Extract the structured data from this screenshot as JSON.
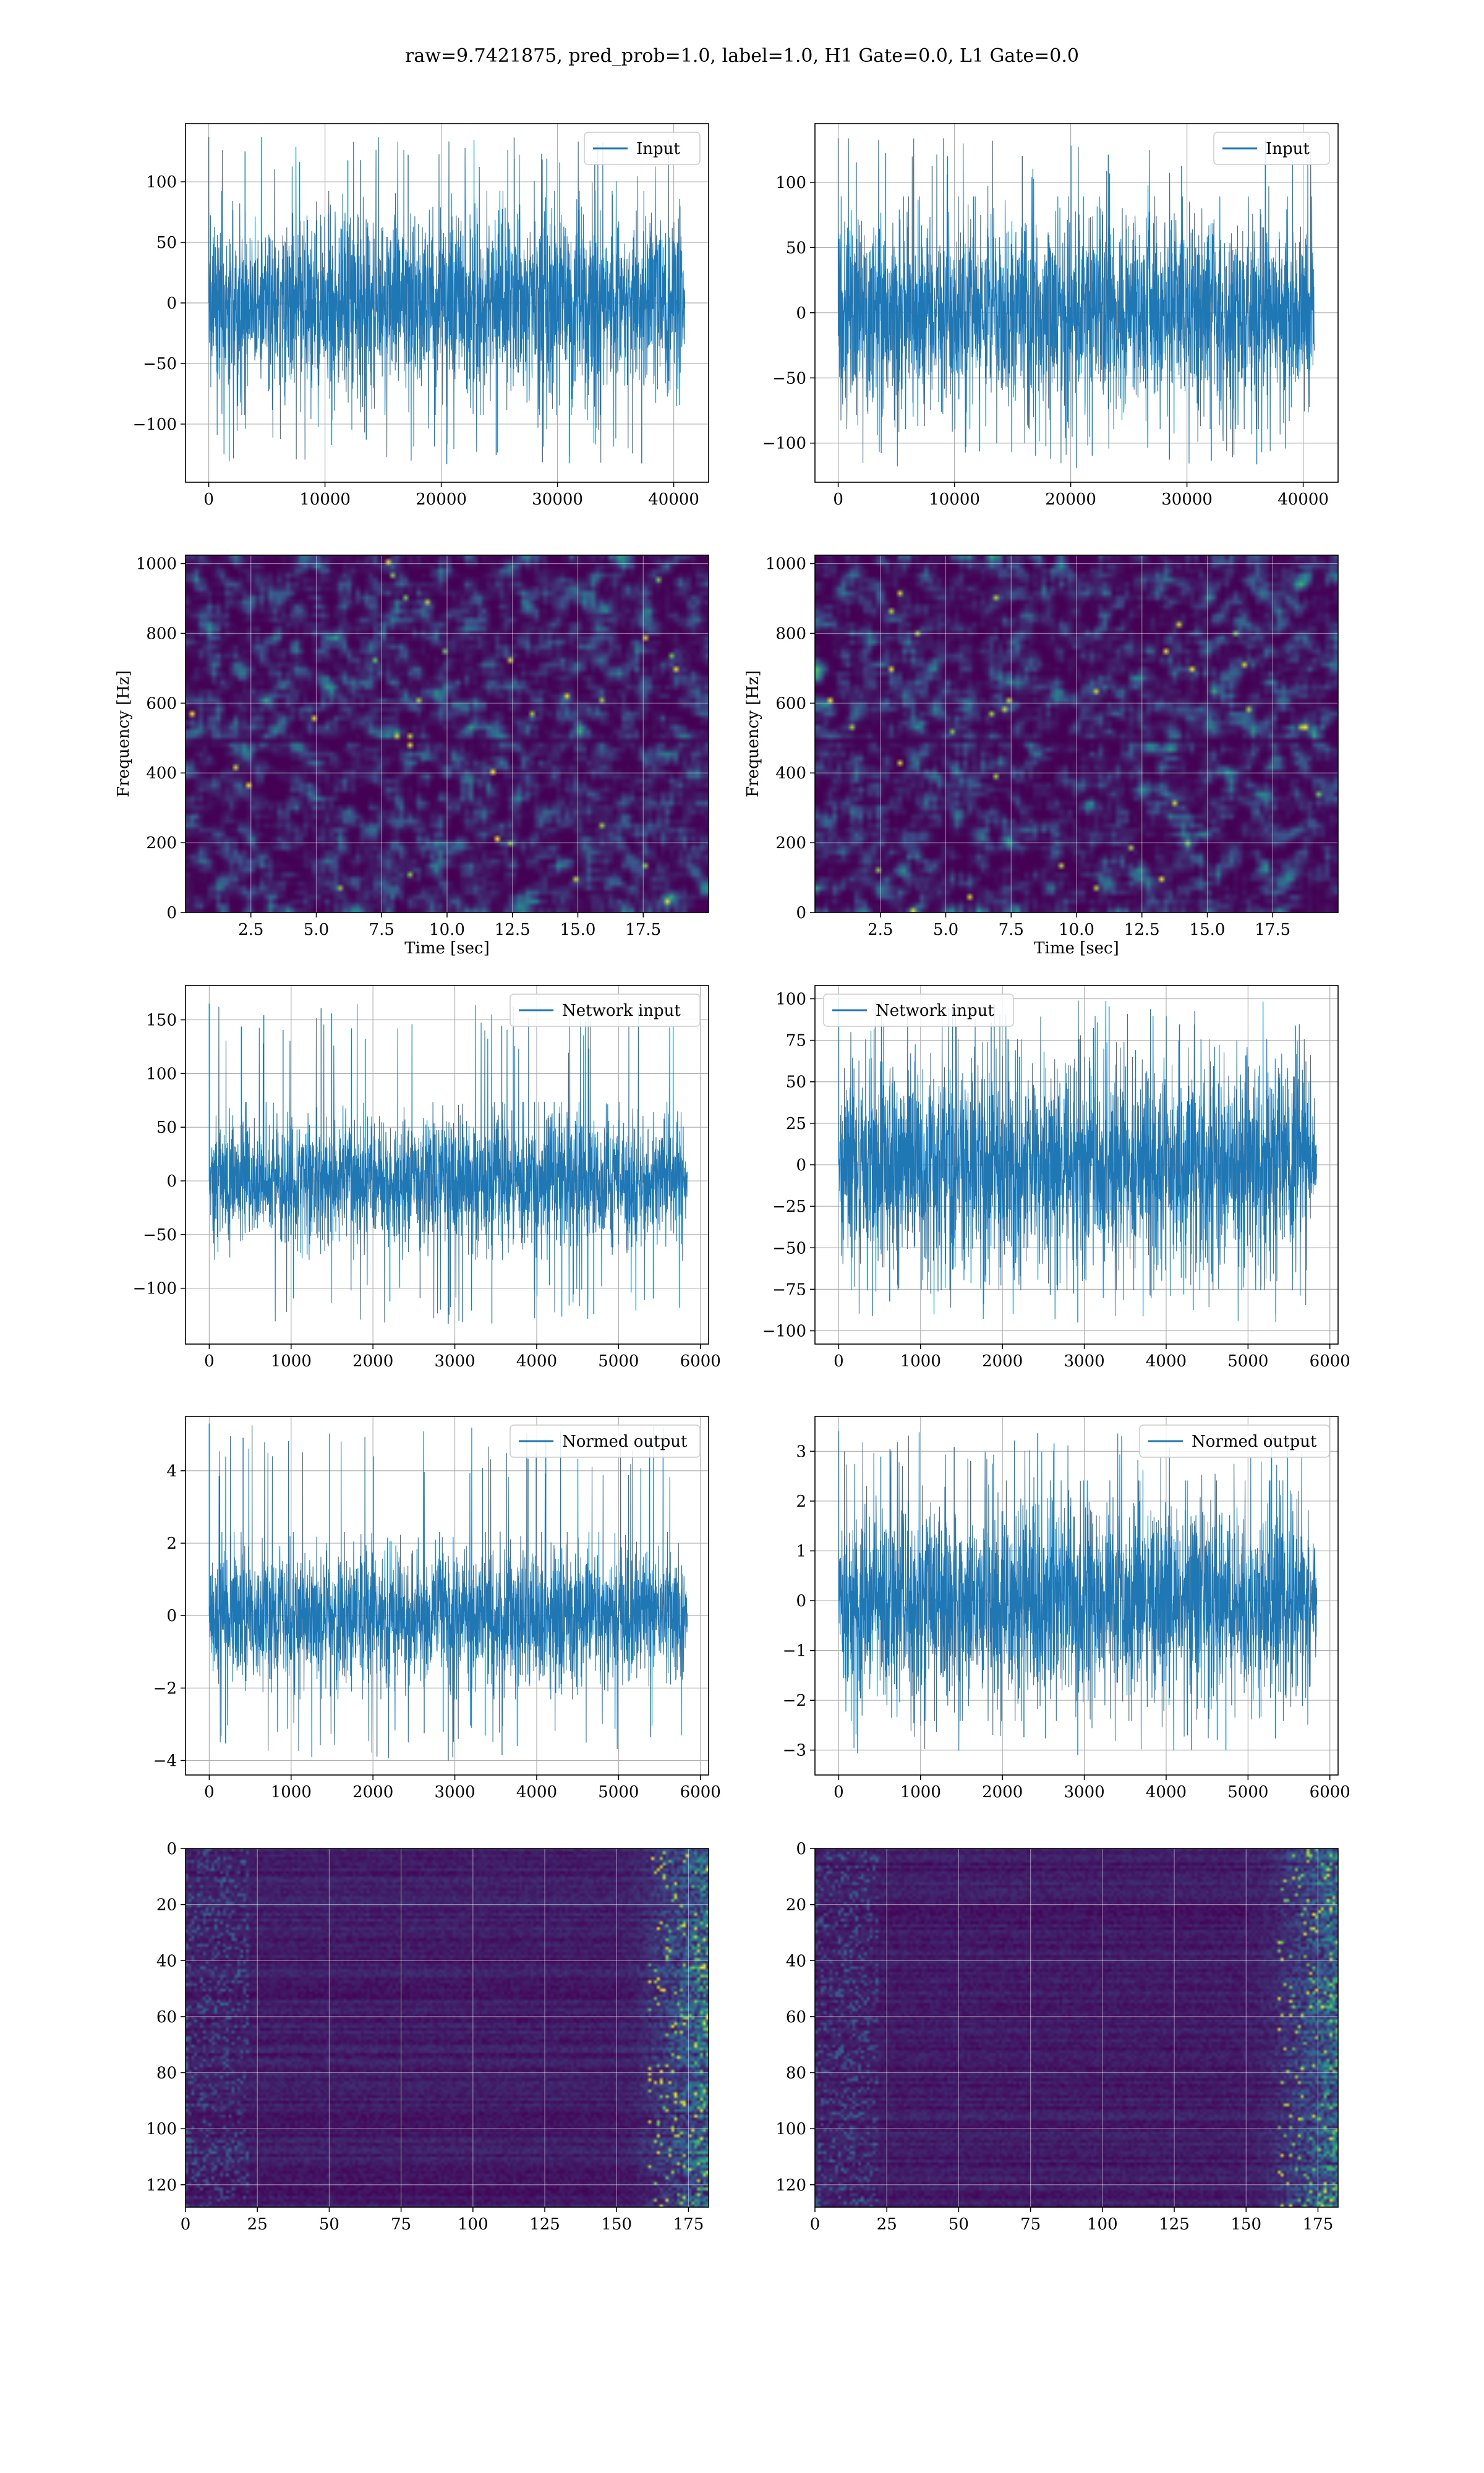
{
  "suptitle": "raw=9.7421875, pred_prob=1.0, label=1.0, H1 Gate=0.0, L1 Gate=0.0",
  "colors": {
    "line": "#1f77b4",
    "grid": "#b0b0b0",
    "viridis_dark": "#440154",
    "viridis_mid": "#21918c",
    "viridis_bright": "#fde725"
  },
  "chart_data": [
    {
      "id": "r0c0",
      "type": "line",
      "legend": "Input",
      "legend_loc": "upper right",
      "xlim": [
        -2000,
        43000
      ],
      "ylim": [
        -148,
        148
      ],
      "xticks": [
        0,
        10000,
        20000,
        30000,
        40000
      ],
      "yticks": [
        -100,
        -50,
        0,
        50,
        100
      ],
      "ytick_labels": [
        "−100",
        "−50",
        "0",
        "50",
        "100"
      ],
      "signal": {
        "n": 40960,
        "core": 88,
        "max": 137,
        "min": -133
      },
      "xlabel": "",
      "ylabel": "",
      "grid": true
    },
    {
      "id": "r0c1",
      "type": "line",
      "legend": "Input",
      "legend_loc": "upper right",
      "xlim": [
        -2000,
        43000
      ],
      "ylim": [
        -130,
        145
      ],
      "xticks": [
        0,
        10000,
        20000,
        30000,
        40000
      ],
      "yticks": [
        -100,
        -50,
        0,
        50,
        100
      ],
      "ytick_labels": [
        "−100",
        "−50",
        "0",
        "50",
        "100"
      ],
      "signal": {
        "n": 40960,
        "core": 85,
        "max": 134,
        "min": -119
      },
      "xlabel": "",
      "ylabel": "",
      "grid": true
    },
    {
      "id": "r1c0",
      "type": "heatmap",
      "style": "spectrogram",
      "xlim": [
        0,
        20
      ],
      "ylim": [
        0,
        1024
      ],
      "xticks": [
        2.5,
        5.0,
        7.5,
        10.0,
        12.5,
        15.0,
        17.5
      ],
      "yticks": [
        0,
        200,
        400,
        600,
        800,
        1000
      ],
      "xlabel": "Time [sec]",
      "ylabel": "Frequency [Hz]",
      "grid": true,
      "seed": 11
    },
    {
      "id": "r1c1",
      "type": "heatmap",
      "style": "spectrogram",
      "xlim": [
        0,
        20
      ],
      "ylim": [
        0,
        1024
      ],
      "xticks": [
        2.5,
        5.0,
        7.5,
        10.0,
        12.5,
        15.0,
        17.5
      ],
      "yticks": [
        0,
        200,
        400,
        600,
        800,
        1000
      ],
      "xlabel": "Time [sec]",
      "ylabel": "Frequency [Hz]",
      "grid": true,
      "seed": 23
    },
    {
      "id": "r2c0",
      "type": "line",
      "legend": "Network input",
      "legend_loc": "upper right",
      "xlim": [
        -290,
        6100
      ],
      "ylim": [
        -152,
        182
      ],
      "xticks": [
        0,
        1000,
        2000,
        3000,
        4000,
        5000,
        6000
      ],
      "yticks": [
        -100,
        -50,
        0,
        50,
        100,
        150
      ],
      "ytick_labels": [
        "−100",
        "−50",
        "0",
        "50",
        "100",
        "150"
      ],
      "signal": {
        "n": 5840,
        "core": 70,
        "max": 165,
        "min": -133,
        "spike_at": 0,
        "taper": true
      },
      "xlabel": "",
      "ylabel": "",
      "grid": true
    },
    {
      "id": "r2c1",
      "type": "line",
      "legend": "Network input",
      "legend_loc": "upper left",
      "xlim": [
        -290,
        6100
      ],
      "ylim": [
        -108,
        108
      ],
      "xticks": [
        0,
        1000,
        2000,
        3000,
        4000,
        5000,
        6000
      ],
      "yticks": [
        -100,
        -75,
        -50,
        -25,
        0,
        25,
        50,
        75,
        100
      ],
      "ytick_labels": [
        "−100",
        "−75",
        "−50",
        "−25",
        "0",
        "25",
        "50",
        "75",
        "100"
      ],
      "signal": {
        "n": 5840,
        "core": 72,
        "max": 101,
        "min": -95,
        "taper": true
      },
      "xlabel": "",
      "ylabel": "",
      "grid": true
    },
    {
      "id": "r3c0",
      "type": "line",
      "legend": "Normed output",
      "legend_loc": "upper right",
      "xlim": [
        -290,
        6100
      ],
      "ylim": [
        -4.4,
        5.5
      ],
      "xticks": [
        0,
        1000,
        2000,
        3000,
        4000,
        5000,
        6000
      ],
      "yticks": [
        -4,
        -2,
        0,
        2,
        4
      ],
      "ytick_labels": [
        "−4",
        "−2",
        "0",
        "2",
        "4"
      ],
      "signal": {
        "n": 5840,
        "core": 2.2,
        "max": 5.3,
        "min": -4.0,
        "spike_at": 0,
        "taper": true
      },
      "xlabel": "",
      "ylabel": "",
      "grid": true
    },
    {
      "id": "r3c1",
      "type": "line",
      "legend": "Normed output",
      "legend_loc": "upper right",
      "xlim": [
        -290,
        6100
      ],
      "ylim": [
        -3.5,
        3.7
      ],
      "xticks": [
        0,
        1000,
        2000,
        3000,
        4000,
        5000,
        6000
      ],
      "yticks": [
        -3,
        -2,
        -1,
        0,
        1,
        2,
        3
      ],
      "ytick_labels": [
        "−3",
        "−2",
        "−1",
        "0",
        "1",
        "2",
        "3"
      ],
      "signal": {
        "n": 5840,
        "core": 2.3,
        "max": 3.4,
        "min": -3.1,
        "taper": true
      },
      "xlabel": "",
      "ylabel": "",
      "grid": true
    },
    {
      "id": "r4c0",
      "type": "heatmap",
      "style": "activations",
      "xlim": [
        0,
        182
      ],
      "ylim": [
        128,
        0
      ],
      "xticks": [
        0,
        25,
        50,
        75,
        100,
        125,
        150,
        175
      ],
      "yticks": [
        0,
        20,
        40,
        60,
        80,
        100,
        120
      ],
      "xlabel": "",
      "ylabel": "",
      "grid": true,
      "seed": 37
    },
    {
      "id": "r4c1",
      "type": "heatmap",
      "style": "activations",
      "xlim": [
        0,
        182
      ],
      "ylim": [
        128,
        0
      ],
      "xticks": [
        0,
        25,
        50,
        75,
        100,
        125,
        150,
        175
      ],
      "yticks": [
        0,
        20,
        40,
        60,
        80,
        100,
        120
      ],
      "xlabel": "",
      "ylabel": "",
      "grid": true,
      "seed": 53
    }
  ]
}
